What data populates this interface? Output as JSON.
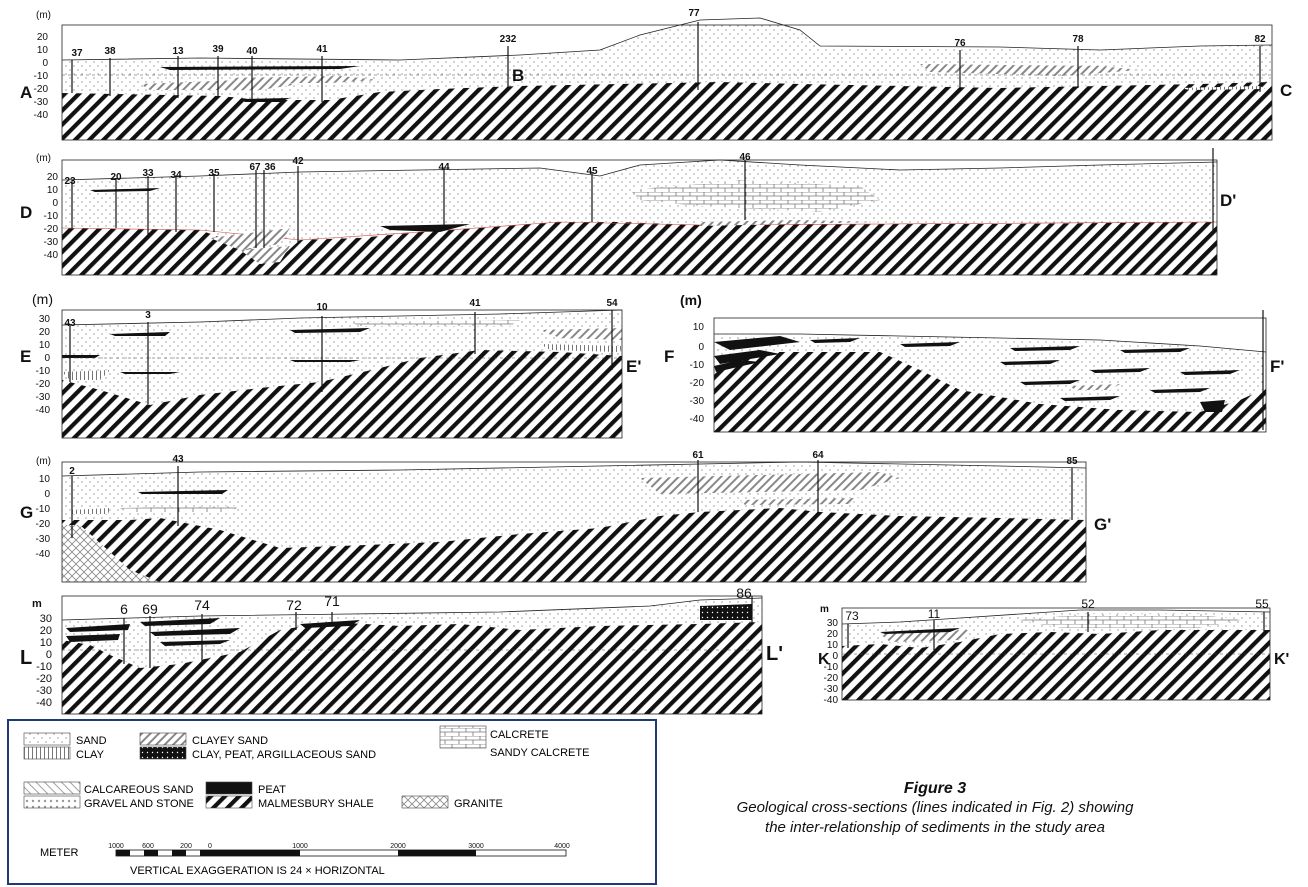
{
  "sections": [
    {
      "id": "ac",
      "unit": "(m)",
      "ticks": [
        "20",
        "10",
        "0",
        "-10",
        "-20",
        "-30",
        "-40"
      ],
      "start": "A",
      "mid": "B",
      "end": "C",
      "wells": [
        "37",
        "38",
        "13",
        "39",
        "40",
        "41",
        "232",
        "77",
        "76",
        "78",
        "82"
      ]
    },
    {
      "id": "dd",
      "unit": "(m)",
      "ticks": [
        "20",
        "10",
        "0",
        "-10",
        "-20",
        "-30",
        "-40"
      ],
      "start": "D",
      "end": "D'",
      "wells": [
        "23",
        "20",
        "33",
        "34",
        "35",
        "67",
        "36",
        "42",
        "44",
        "45",
        "46"
      ]
    },
    {
      "id": "ee",
      "unit": "(m)",
      "ticks": [
        "30",
        "20",
        "10",
        "0",
        "-10",
        "-20",
        "-30",
        "-40"
      ],
      "start": "E",
      "end": "E'",
      "wells": [
        "43",
        "3",
        "10",
        "41",
        "54"
      ]
    },
    {
      "id": "ff",
      "unit": "(m)",
      "ticks": [
        "10",
        "0",
        "-10",
        "-20",
        "-30",
        "-40"
      ],
      "start": "F",
      "end": "F'",
      "wells": []
    },
    {
      "id": "gg",
      "unit": "(m)",
      "ticks": [
        "10",
        "0",
        "-10",
        "-20",
        "-30",
        "-40"
      ],
      "start": "G",
      "end": "G'",
      "wells": [
        "2",
        "43",
        "61",
        "64",
        "85"
      ]
    },
    {
      "id": "ll",
      "unit": "m",
      "ticks": [
        "30",
        "20",
        "10",
        "0",
        "-10",
        "-20",
        "-30",
        "-40"
      ],
      "start": "L",
      "end": "L'",
      "wells": [
        "6",
        "69",
        "74",
        "72",
        "71",
        "86"
      ]
    },
    {
      "id": "kk",
      "unit": "m",
      "ticks": [
        "30",
        "20",
        "10",
        "0",
        "-10",
        "-20",
        "-30",
        "-40"
      ],
      "start": "K",
      "end": "K'",
      "wells": [
        "73",
        "11",
        "52",
        "55"
      ]
    }
  ],
  "legend": {
    "items": [
      {
        "key": "sand",
        "label": "SAND"
      },
      {
        "key": "clay",
        "label": "CLAY"
      },
      {
        "key": "clayey_sand",
        "label": "CLAYEY SAND"
      },
      {
        "key": "clay_peat",
        "label": "CLAY, PEAT, ARGILLACEOUS SAND"
      },
      {
        "key": "calcrete",
        "label": "CALCRETE"
      },
      {
        "key": "sandy_calcrete",
        "label": "SANDY CALCRETE"
      },
      {
        "key": "calc_sand",
        "label": "CALCAREOUS SAND"
      },
      {
        "key": "gravel",
        "label": "GRAVEL AND STONE"
      },
      {
        "key": "peat",
        "label": "PEAT"
      },
      {
        "key": "shale",
        "label": "MALMESBURY SHALE"
      },
      {
        "key": "granite",
        "label": "GRANITE"
      }
    ],
    "scale": {
      "label": "METER",
      "ticks": [
        "1000",
        "600",
        "200",
        "0",
        "1000",
        "2000",
        "3000",
        "4000"
      ],
      "note": "VERTICAL EXAGGERATION IS 24 × HORIZONTAL"
    }
  },
  "caption": {
    "title": "Figure 3",
    "line1": "Geological cross-sections (lines indicated in Fig. 2) showing",
    "line2": "the inter-relationship of sediments in the study area"
  }
}
